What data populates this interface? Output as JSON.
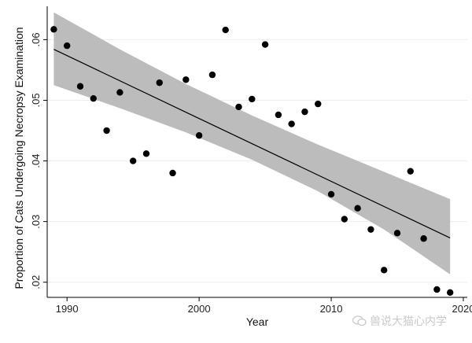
{
  "chart_data": {
    "type": "scatter",
    "xlabel": "Year",
    "ylabel": "Proportion of Cats Undergoing Necropsy Examination",
    "xlim": [
      1988.5,
      2020.3
    ],
    "ylim": [
      0.0175,
      0.0655
    ],
    "xticks": [
      1990,
      2000,
      2010,
      2020
    ],
    "yticks": [
      0.02,
      0.03,
      0.04,
      0.05,
      0.06
    ],
    "ytick_labels": [
      ".02",
      ".03",
      ".04",
      ".05",
      ".06"
    ],
    "grid": "horizontal",
    "legend": "none",
    "points": [
      {
        "x": 1989,
        "y": 0.0617
      },
      {
        "x": 1990,
        "y": 0.059
      },
      {
        "x": 1991,
        "y": 0.0523
      },
      {
        "x": 1992,
        "y": 0.0503
      },
      {
        "x": 1993,
        "y": 0.045
      },
      {
        "x": 1994,
        "y": 0.0513
      },
      {
        "x": 1995,
        "y": 0.04
      },
      {
        "x": 1996,
        "y": 0.0412
      },
      {
        "x": 1997,
        "y": 0.0529
      },
      {
        "x": 1998,
        "y": 0.038
      },
      {
        "x": 1999,
        "y": 0.0534
      },
      {
        "x": 2000,
        "y": 0.0442
      },
      {
        "x": 2001,
        "y": 0.0542
      },
      {
        "x": 2002,
        "y": 0.0616
      },
      {
        "x": 2003,
        "y": 0.0489
      },
      {
        "x": 2004,
        "y": 0.0502
      },
      {
        "x": 2005,
        "y": 0.0592
      },
      {
        "x": 2006,
        "y": 0.0476
      },
      {
        "x": 2007,
        "y": 0.0461
      },
      {
        "x": 2008,
        "y": 0.0481
      },
      {
        "x": 2009,
        "y": 0.0494
      },
      {
        "x": 2010,
        "y": 0.0345
      },
      {
        "x": 2011,
        "y": 0.0304
      },
      {
        "x": 2012,
        "y": 0.0322
      },
      {
        "x": 2013,
        "y": 0.0287
      },
      {
        "x": 2014,
        "y": 0.022
      },
      {
        "x": 2015,
        "y": 0.0281
      },
      {
        "x": 2016,
        "y": 0.0383
      },
      {
        "x": 2017,
        "y": 0.0272
      },
      {
        "x": 2018,
        "y": 0.0188
      },
      {
        "x": 2019,
        "y": 0.0183
      }
    ],
    "fit_line": {
      "x": [
        1989,
        2019
      ],
      "y": [
        0.0584,
        0.0273
      ]
    },
    "confidence_band": {
      "x": [
        1989,
        1994,
        1999,
        2004,
        2009,
        2014,
        2019
      ],
      "upper": [
        0.0645,
        0.0584,
        0.0527,
        0.0475,
        0.0427,
        0.0382,
        0.0337
      ],
      "lower": [
        0.0525,
        0.0487,
        0.0447,
        0.0402,
        0.035,
        0.0287,
        0.0213
      ]
    },
    "colors": {
      "band": "#bcbcbc",
      "line": "#000000",
      "points": "#000000",
      "grid": "#e9eef3"
    }
  },
  "watermark": {
    "text": "兽说大猫心内学",
    "icon": "wechat-icon"
  }
}
